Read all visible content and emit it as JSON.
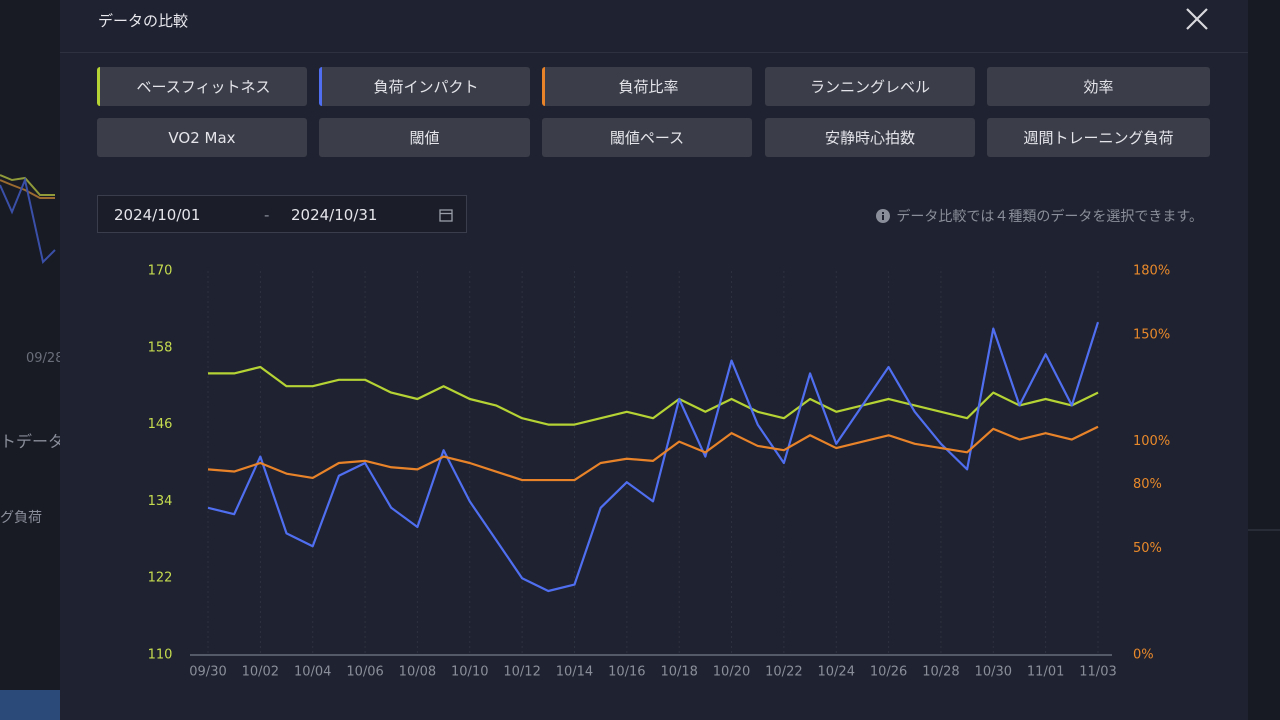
{
  "dialog": {
    "title": "データの比較"
  },
  "background": {
    "texts": [
      "09/28",
      "トデータ",
      "グ負荷"
    ]
  },
  "other_metrics": [
    "ランニングレベル",
    "効率",
    "VO2 Max",
    "閾値",
    "閾値ペース",
    "安静時心拍数",
    "週間トレーニング負荷"
  ],
  "date_range": {
    "start": "2024/10/01",
    "separator": "-",
    "end": "2024/10/31"
  },
  "note": "データ比較では４種類のデータを選択できます。",
  "chart_data": {
    "type": "line",
    "categories": [
      "09/30",
      null,
      "10/02",
      null,
      "10/04",
      null,
      "10/06",
      null,
      "10/08",
      null,
      "10/10",
      null,
      "10/12",
      null,
      "10/14",
      null,
      "10/16",
      null,
      "10/18",
      null,
      "10/20",
      null,
      "10/22",
      null,
      "10/24",
      null,
      "10/26",
      null,
      "10/28",
      null,
      "10/30",
      null,
      "11/01",
      null,
      "11/03"
    ],
    "series": [
      {
        "name": "ベースフィットネス",
        "color": "#b5d334",
        "axis": "y",
        "values": [
          154,
          154,
          155,
          152,
          152,
          153,
          153,
          151,
          150,
          152,
          150,
          149,
          147,
          146,
          146,
          147,
          148,
          147,
          150,
          148,
          150,
          148,
          147,
          150,
          148,
          149,
          150,
          149,
          148,
          147,
          151,
          149,
          150,
          149,
          151
        ]
      },
      {
        "name": "負荷インパクト",
        "color": "#4f6ff0",
        "axis": "y",
        "values": [
          133,
          132,
          141,
          129,
          127,
          138,
          140,
          133,
          130,
          142,
          134,
          128,
          122,
          120,
          121,
          133,
          137,
          134,
          150,
          141,
          156,
          146,
          140,
          154,
          143,
          149,
          155,
          148,
          143,
          139,
          161,
          149,
          157,
          149,
          162
        ]
      },
      {
        "name": "負荷比率",
        "color": "#e8832a",
        "axis": "y2",
        "values": [
          87,
          86,
          90,
          85,
          83,
          90,
          91,
          88,
          87,
          93,
          90,
          86,
          82,
          82,
          82,
          90,
          92,
          91,
          100,
          95,
          104,
          98,
          96,
          103,
          97,
          100,
          103,
          99,
          97,
          95,
          106,
          101,
          104,
          101,
          107
        ]
      }
    ],
    "ylim": [
      110,
      170
    ],
    "yticks": [
      110,
      122,
      134,
      146,
      158,
      170
    ],
    "y2lim": [
      0,
      180
    ],
    "y2ticks": [
      {
        "value": 0,
        "label": "0%"
      },
      {
        "value": 50,
        "label": "50%"
      },
      {
        "value": 80,
        "label": "80%"
      },
      {
        "value": 100,
        "label": "100%"
      },
      {
        "value": 150,
        "label": "150%"
      },
      {
        "value": 180,
        "label": "180%"
      }
    ],
    "grid": true,
    "y_color": "#c5dc4f",
    "y2_color": "#e8892b"
  }
}
